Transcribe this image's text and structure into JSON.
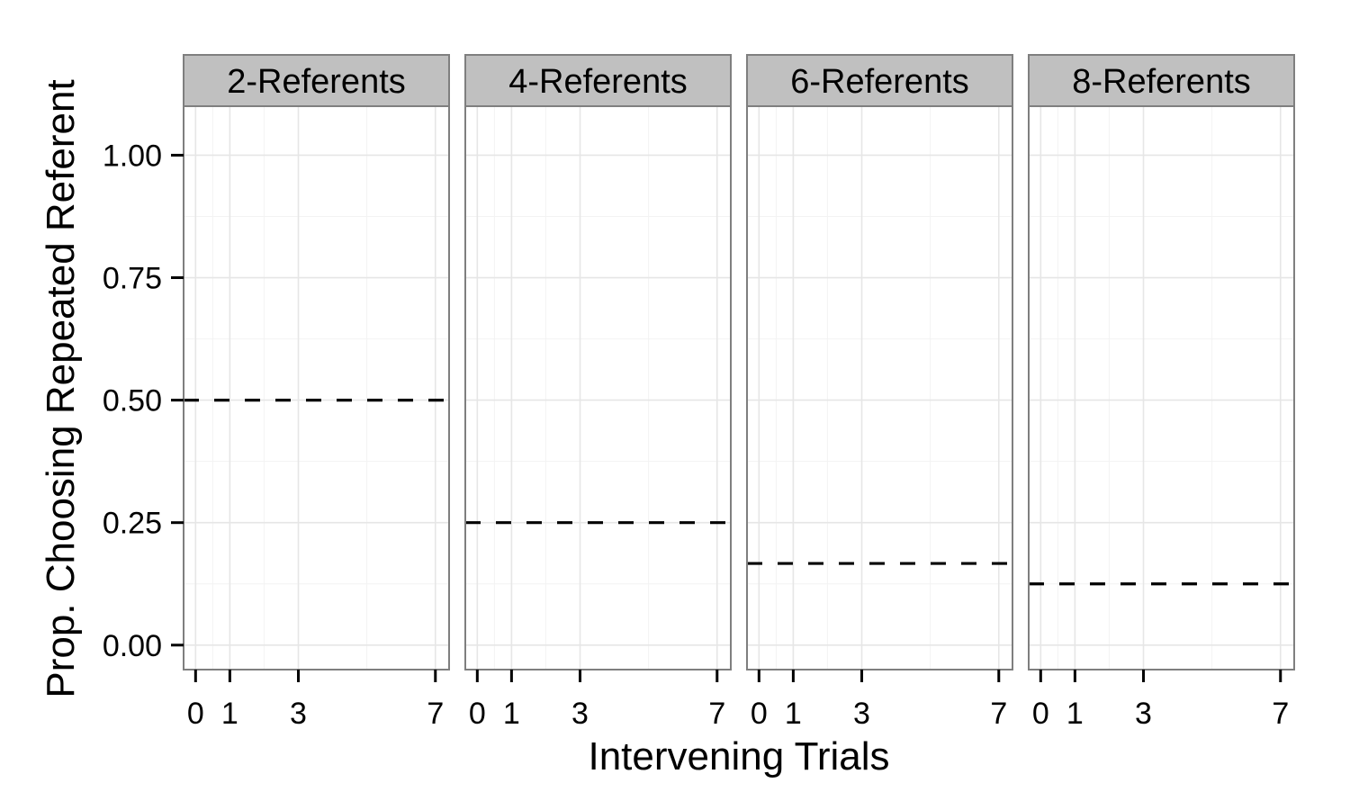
{
  "chart_data": {
    "type": "line",
    "xlabel": "Intervening Trials",
    "ylabel": "Prop. Choosing Repeated Referent",
    "xlim": [
      -0.35,
      7.4
    ],
    "ylim": [
      -0.05,
      1.1
    ],
    "x_ticks": [
      0,
      1,
      3,
      7
    ],
    "y_ticks": [
      0.0,
      0.25,
      0.5,
      0.75,
      1.0
    ],
    "y_tick_labels": [
      "0.00",
      "0.25",
      "0.50",
      "0.75",
      "1.00"
    ],
    "grid": true,
    "panels": [
      {
        "label": "2-Referents",
        "chance_line": 0.5
      },
      {
        "label": "4-Referents",
        "chance_line": 0.25
      },
      {
        "label": "6-Referents",
        "chance_line": 0.1667
      },
      {
        "label": "8-Referents",
        "chance_line": 0.125
      }
    ],
    "colors": {
      "strip_fill": "#c0c0c0",
      "panel_border": "#7f7f7f",
      "grid_major": "#e6e6e6",
      "grid_minor": "#f3f3f3",
      "line": "#000000"
    }
  }
}
